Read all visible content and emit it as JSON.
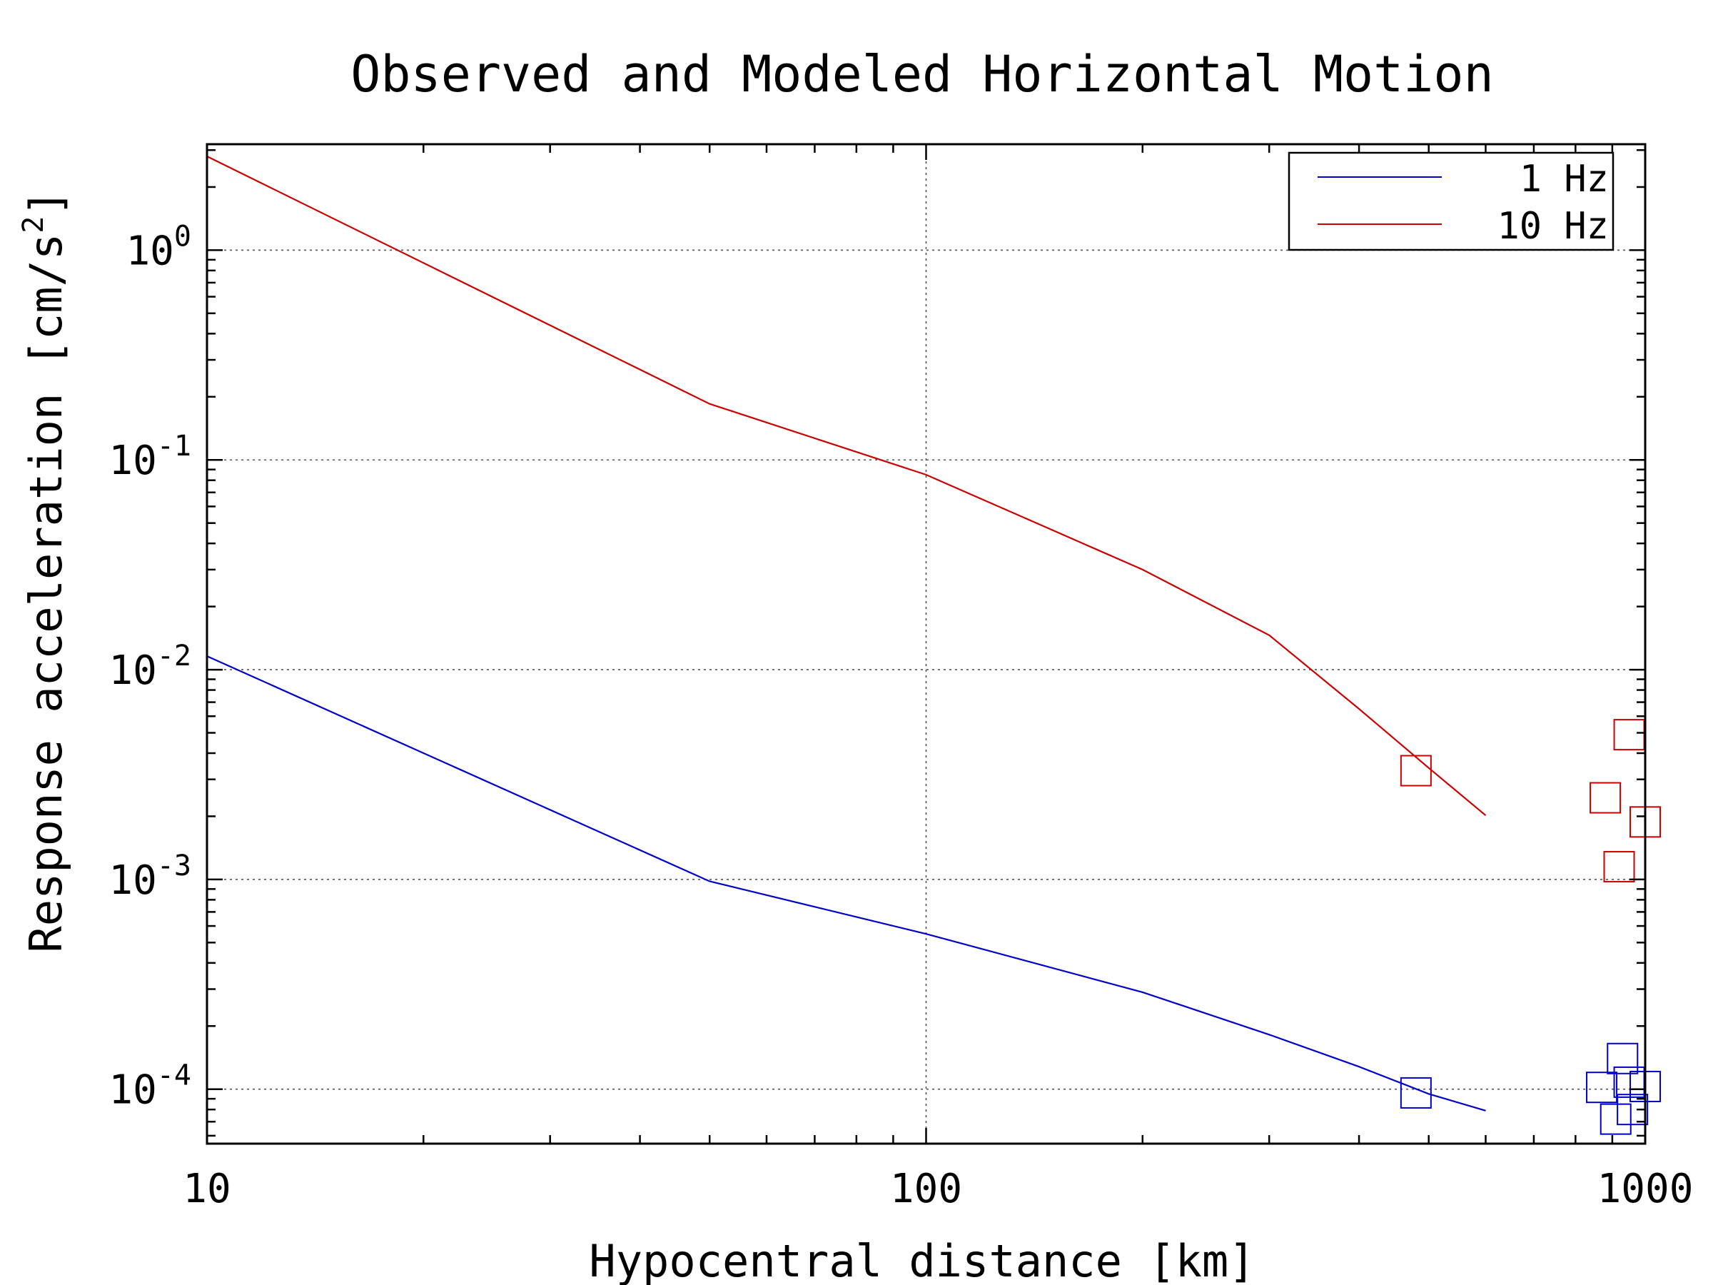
{
  "chart_data": {
    "type": "line",
    "title": "Observed and Modeled Horizontal Motion",
    "xlabel": "Hypocentral distance [km]",
    "ylabel": "Response acceleration [cm/s^2]",
    "ylabel_parts": {
      "main": "Response acceleration [cm/s",
      "sup": "2",
      "end": "]"
    },
    "x_scale": "log",
    "y_scale": "log",
    "xlim": [
      10,
      1000
    ],
    "ylim": [
      5.5e-05,
      3.2
    ],
    "x_ticks": [
      {
        "value": 10,
        "label": "10"
      },
      {
        "value": 100,
        "label": "100"
      },
      {
        "value": 1000,
        "label": "1000"
      }
    ],
    "y_ticks": [
      {
        "value": 1,
        "base": "10",
        "exp": "0"
      },
      {
        "value": 0.1,
        "base": "10",
        "exp": "-1"
      },
      {
        "value": 0.01,
        "base": "10",
        "exp": "-2"
      },
      {
        "value": 0.001,
        "base": "10",
        "exp": "-3"
      },
      {
        "value": 0.0001,
        "base": "10",
        "exp": "-4"
      }
    ],
    "grid": true,
    "legend_position": "top-right",
    "series": [
      {
        "name": "1 Hz",
        "color": "#0000cc",
        "x": [
          10,
          50,
          100,
          200,
          300,
          400,
          500,
          600
        ],
        "y": [
          0.0116,
          0.00098,
          0.00055,
          0.00029,
          0.000182,
          0.000128,
          9.5e-05,
          7.9e-05
        ],
        "observed": {
          "x": [
            480,
            870,
            910,
            930,
            950,
            960,
            1000
          ],
          "y": [
            9.6e-05,
            0.000102,
            7.2e-05,
            0.00014,
            0.000108,
            8e-05,
            0.000103
          ]
        }
      },
      {
        "name": "10 Hz",
        "color": "#cc0000",
        "x": [
          10,
          50,
          100,
          200,
          300,
          400,
          500,
          600
        ],
        "y": [
          2.8,
          0.185,
          0.085,
          0.03,
          0.0146,
          0.0065,
          0.0034,
          0.00202
        ],
        "observed": {
          "x": [
            480,
            880,
            920,
            950,
            1000
          ],
          "y": [
            0.0033,
            0.00245,
            0.00115,
            0.0049,
            0.00188
          ]
        }
      }
    ]
  }
}
